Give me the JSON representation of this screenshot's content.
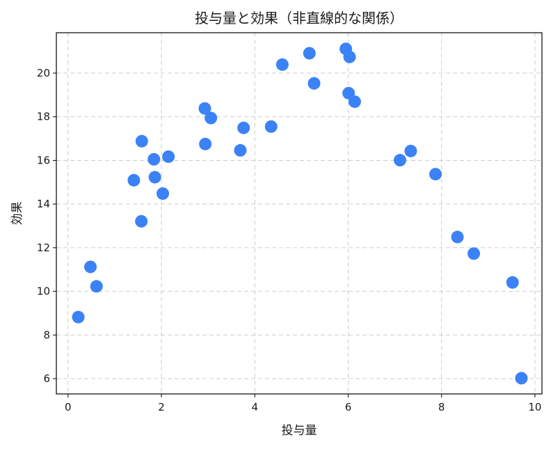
{
  "chart_data": {
    "type": "scatter",
    "title": "投与量と効果（非直線的な関係）",
    "xlabel": "投与量",
    "ylabel": "効果",
    "xlim": [
      -0.25,
      10.15
    ],
    "ylim": [
      5.3,
      21.85
    ],
    "xticks": [
      0,
      2,
      4,
      6,
      8,
      10
    ],
    "yticks": [
      6,
      8,
      10,
      12,
      14,
      16,
      18,
      20
    ],
    "xtick_labels": [
      "0",
      "2",
      "4",
      "6",
      "8",
      "10"
    ],
    "ytick_labels": [
      "6",
      "8",
      "10",
      "12",
      "14",
      "16",
      "18",
      "20"
    ],
    "grid": true,
    "point_color": "#3b82f6",
    "points": [
      {
        "x": 0.22,
        "y": 8.82
      },
      {
        "x": 0.48,
        "y": 11.12
      },
      {
        "x": 0.61,
        "y": 10.23
      },
      {
        "x": 1.41,
        "y": 15.09
      },
      {
        "x": 1.57,
        "y": 13.21
      },
      {
        "x": 1.58,
        "y": 16.88
      },
      {
        "x": 1.84,
        "y": 16.05
      },
      {
        "x": 1.86,
        "y": 15.23
      },
      {
        "x": 2.03,
        "y": 14.48
      },
      {
        "x": 2.15,
        "y": 16.17
      },
      {
        "x": 2.93,
        "y": 18.38
      },
      {
        "x": 2.94,
        "y": 16.75
      },
      {
        "x": 3.06,
        "y": 17.94
      },
      {
        "x": 3.69,
        "y": 16.46
      },
      {
        "x": 3.76,
        "y": 17.49
      },
      {
        "x": 4.35,
        "y": 17.55
      },
      {
        "x": 4.59,
        "y": 20.39
      },
      {
        "x": 5.17,
        "y": 20.91
      },
      {
        "x": 5.27,
        "y": 19.53
      },
      {
        "x": 5.95,
        "y": 21.11
      },
      {
        "x": 6.01,
        "y": 19.08
      },
      {
        "x": 6.03,
        "y": 20.74
      },
      {
        "x": 6.14,
        "y": 18.69
      },
      {
        "x": 7.11,
        "y": 16.01
      },
      {
        "x": 7.34,
        "y": 16.43
      },
      {
        "x": 7.87,
        "y": 15.37
      },
      {
        "x": 8.34,
        "y": 12.49
      },
      {
        "x": 8.69,
        "y": 11.73
      },
      {
        "x": 9.52,
        "y": 10.41
      },
      {
        "x": 9.71,
        "y": 6.02
      }
    ]
  }
}
